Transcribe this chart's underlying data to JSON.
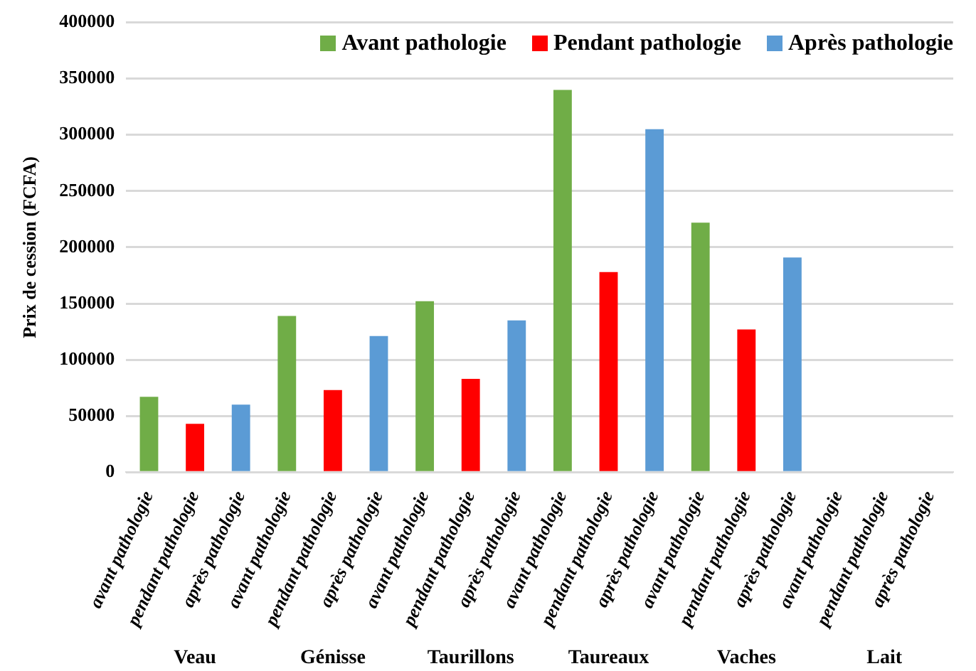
{
  "chart_data": {
    "type": "bar",
    "ylabel": "Prix de cession (FCFA)",
    "categories": [
      "avant pathologie",
      "pendant pathologie",
      "après pathologie",
      "avant pathologie",
      "pendant pathologie",
      "après pathologie",
      "avant pathologie",
      "pendant pathologie",
      "après pathologie",
      "avant pathologie",
      "pendant pathologie",
      "après pathologie",
      "avant pathologie",
      "pendant pathologie",
      "après pathologie",
      "avant pathologie",
      "pendant pathologie",
      "après pathologie"
    ],
    "series": [
      {
        "name": "Avant pathologie",
        "color": "#70ad47",
        "values": [
          67000,
          null,
          null,
          139000,
          null,
          null,
          152000,
          null,
          null,
          340000,
          null,
          null,
          222000,
          null,
          null,
          0,
          null,
          null
        ]
      },
      {
        "name": "Pendant pathologie",
        "color": "#ff0000",
        "values": [
          null,
          43000,
          null,
          null,
          73000,
          null,
          null,
          83000,
          null,
          null,
          178000,
          null,
          null,
          127000,
          null,
          null,
          0,
          null
        ]
      },
      {
        "name": "Après pathologie",
        "color": "#5b9bd5",
        "values": [
          null,
          null,
          60000,
          null,
          null,
          121000,
          null,
          null,
          135000,
          null,
          null,
          305000,
          null,
          null,
          191000,
          null,
          null,
          0
        ]
      }
    ],
    "annotations": [
      "Veau",
      "Génisse",
      "Taurillons",
      "Taureaux",
      "Vaches",
      "Lait"
    ],
    "ylim": [
      0,
      400000
    ],
    "yticks": [
      0,
      50000,
      100000,
      150000,
      200000,
      250000,
      300000,
      350000,
      400000
    ],
    "grid": "y",
    "legend": "top right"
  }
}
